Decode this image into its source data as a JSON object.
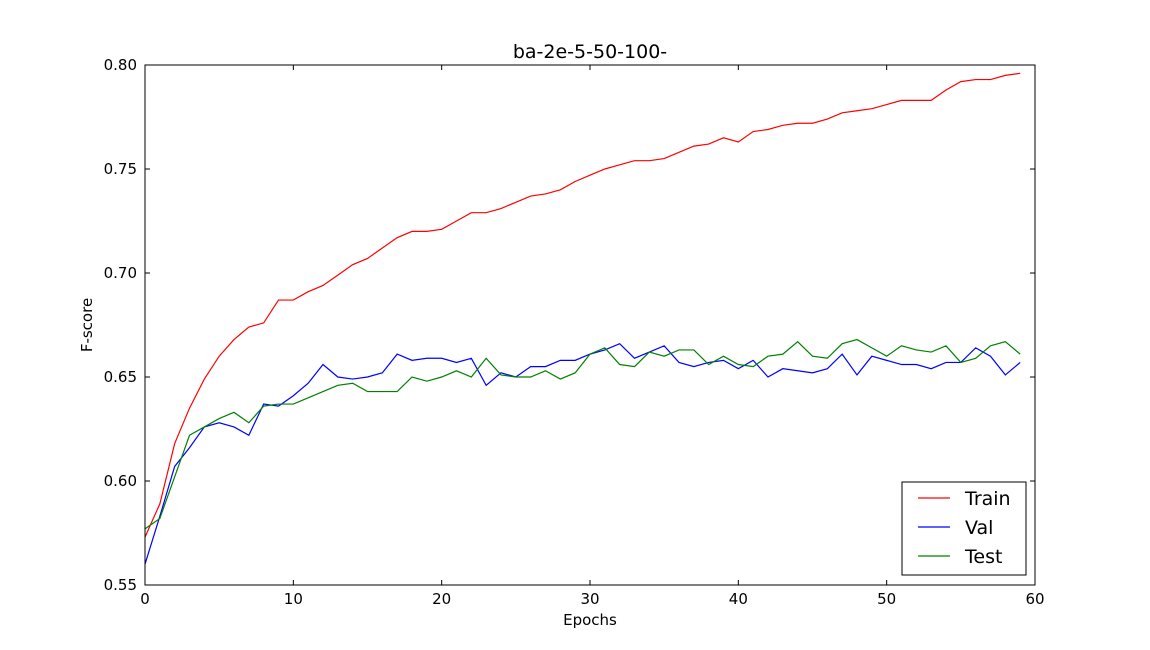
{
  "chart_data": {
    "type": "line",
    "title": "ba-2e-5-50-100-",
    "xlabel": "Epochs",
    "ylabel": "F-score",
    "xlim": [
      0,
      60
    ],
    "ylim": [
      0.55,
      0.8
    ],
    "xticks": [
      0,
      10,
      20,
      30,
      40,
      50,
      60
    ],
    "yticks": [
      0.55,
      0.6,
      0.65,
      0.7,
      0.75,
      0.8
    ],
    "xtick_labels": [
      "0",
      "10",
      "20",
      "30",
      "40",
      "50",
      "60"
    ],
    "ytick_labels": [
      "0.55",
      "0.60",
      "0.65",
      "0.70",
      "0.75",
      "0.80"
    ],
    "grid": false,
    "legend_position": "bottom-right",
    "x": [
      0,
      1,
      2,
      3,
      4,
      5,
      6,
      7,
      8,
      9,
      10,
      11,
      12,
      13,
      14,
      15,
      16,
      17,
      18,
      19,
      20,
      21,
      22,
      23,
      24,
      25,
      26,
      27,
      28,
      29,
      30,
      31,
      32,
      33,
      34,
      35,
      36,
      37,
      38,
      39,
      40,
      41,
      42,
      43,
      44,
      45,
      46,
      47,
      48,
      49,
      50,
      51,
      52,
      53,
      54,
      55,
      56,
      57,
      58,
      59
    ],
    "series": [
      {
        "name": "Train",
        "color": "#ff0000",
        "values": [
          0.573,
          0.589,
          0.618,
          0.635,
          0.649,
          0.66,
          0.668,
          0.674,
          0.676,
          0.687,
          0.687,
          0.691,
          0.694,
          0.699,
          0.704,
          0.707,
          0.712,
          0.717,
          0.72,
          0.72,
          0.721,
          0.725,
          0.729,
          0.729,
          0.731,
          0.734,
          0.737,
          0.738,
          0.74,
          0.744,
          0.747,
          0.75,
          0.752,
          0.754,
          0.754,
          0.755,
          0.758,
          0.761,
          0.762,
          0.765,
          0.763,
          0.768,
          0.769,
          0.771,
          0.772,
          0.772,
          0.774,
          0.777,
          0.778,
          0.779,
          0.781,
          0.783,
          0.783,
          0.783,
          0.788,
          0.792,
          0.793,
          0.793,
          0.795,
          0.796
        ]
      },
      {
        "name": "Val",
        "color": "#0000ff",
        "values": [
          0.56,
          0.583,
          0.607,
          0.616,
          0.626,
          0.628,
          0.626,
          0.622,
          0.637,
          0.636,
          0.641,
          0.647,
          0.656,
          0.65,
          0.649,
          0.65,
          0.652,
          0.661,
          0.658,
          0.659,
          0.659,
          0.657,
          0.659,
          0.646,
          0.652,
          0.65,
          0.655,
          0.655,
          0.658,
          0.658,
          0.661,
          0.663,
          0.666,
          0.659,
          0.662,
          0.665,
          0.657,
          0.655,
          0.657,
          0.658,
          0.654,
          0.658,
          0.65,
          0.654,
          0.653,
          0.652,
          0.654,
          0.661,
          0.651,
          0.66,
          0.658,
          0.656,
          0.656,
          0.654,
          0.657,
          0.657,
          0.664,
          0.66,
          0.651,
          0.657
        ]
      },
      {
        "name": "Test",
        "color": "#008000",
        "values": [
          0.577,
          0.582,
          0.602,
          0.622,
          0.626,
          0.63,
          0.633,
          0.628,
          0.636,
          0.637,
          0.637,
          0.64,
          0.643,
          0.646,
          0.647,
          0.643,
          0.643,
          0.643,
          0.65,
          0.648,
          0.65,
          0.653,
          0.65,
          0.659,
          0.651,
          0.65,
          0.65,
          0.653,
          0.649,
          0.652,
          0.661,
          0.664,
          0.656,
          0.655,
          0.662,
          0.66,
          0.663,
          0.663,
          0.656,
          0.66,
          0.656,
          0.655,
          0.66,
          0.661,
          0.667,
          0.66,
          0.659,
          0.666,
          0.668,
          0.664,
          0.66,
          0.665,
          0.663,
          0.662,
          0.665,
          0.657,
          0.659,
          0.665,
          0.667,
          0.661
        ]
      }
    ]
  }
}
